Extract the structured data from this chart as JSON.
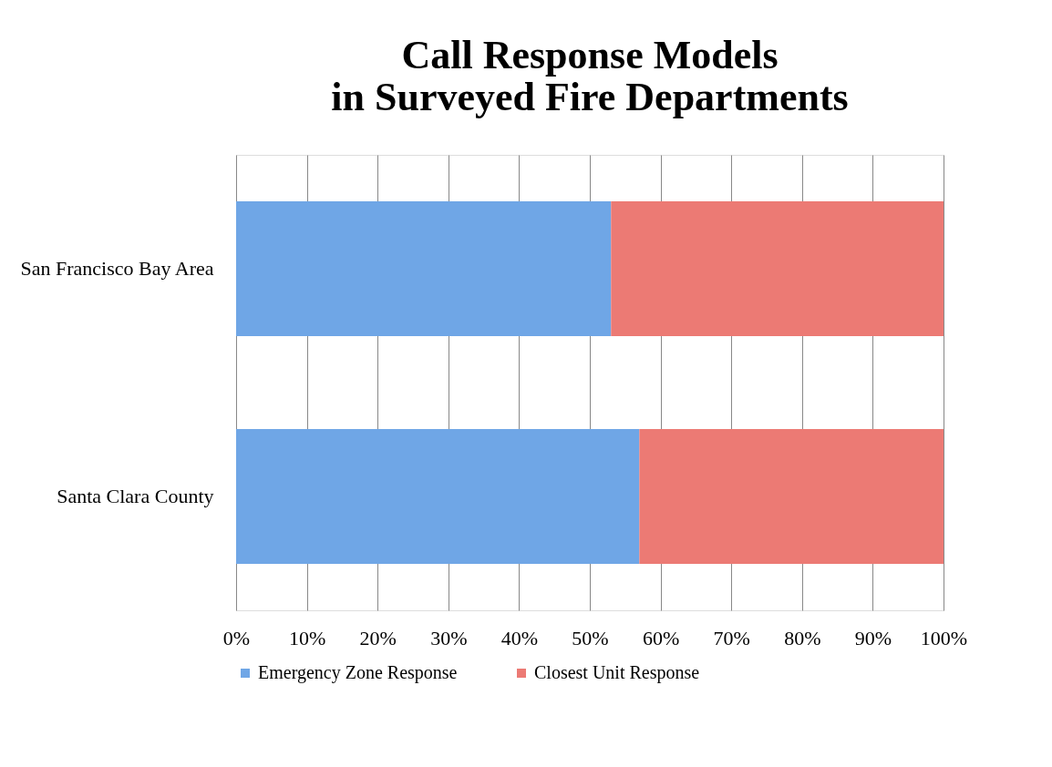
{
  "chart_data": {
    "type": "bar",
    "orientation": "horizontal",
    "stacked": true,
    "title": "Call Response Models\nin Surveyed Fire Departments",
    "categories": [
      "San Francisco Bay Area",
      "Santa Clara County"
    ],
    "series": [
      {
        "name": "Emergency Zone Response",
        "color": "#6fa6e6",
        "values": [
          53,
          57
        ]
      },
      {
        "name": "Closest Unit Response",
        "color": "#ec7a74",
        "values": [
          47,
          43
        ]
      }
    ],
    "xlim": [
      0,
      100
    ],
    "xticks": [
      {
        "value": 0,
        "label": "0%"
      },
      {
        "value": 10,
        "label": "10%"
      },
      {
        "value": 20,
        "label": "20%"
      },
      {
        "value": 30,
        "label": "30%"
      },
      {
        "value": 40,
        "label": "40%"
      },
      {
        "value": 50,
        "label": "50%"
      },
      {
        "value": 60,
        "label": "60%"
      },
      {
        "value": 70,
        "label": "70%"
      },
      {
        "value": 80,
        "label": "80%"
      },
      {
        "value": 90,
        "label": "90%"
      },
      {
        "value": 100,
        "label": "100%"
      }
    ],
    "grid": "x",
    "legend": "bottom"
  }
}
